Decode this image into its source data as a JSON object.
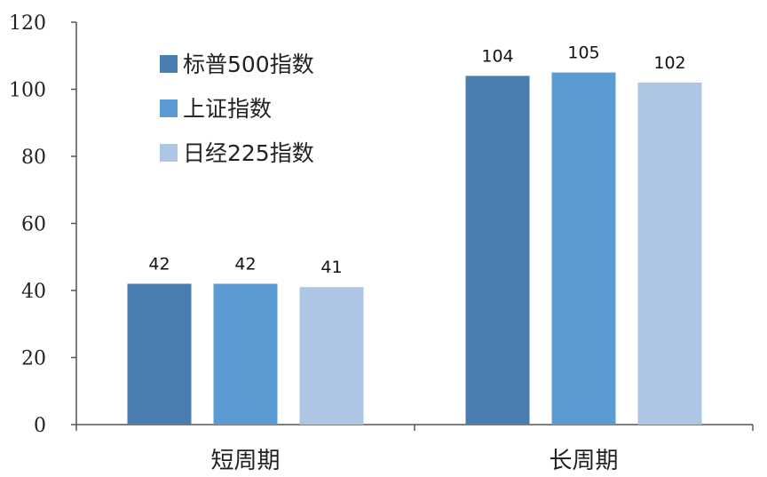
{
  "chart_data": {
    "type": "bar",
    "categories": [
      "短周期",
      "长周期"
    ],
    "series": [
      {
        "name": "标普500指数",
        "values": [
          42,
          104
        ],
        "color": "#4a7eb0"
      },
      {
        "name": "上证指数",
        "values": [
          42,
          105
        ],
        "color": "#5b9bd3"
      },
      {
        "name": "日经225指数",
        "values": [
          41,
          102
        ],
        "color": "#aec6e6"
      }
    ],
    "ylim": [
      0,
      120
    ],
    "yticks": [
      0,
      20,
      40,
      60,
      80,
      100,
      120
    ],
    "grid": false,
    "legend_position": "top-left",
    "data_labels": true
  }
}
